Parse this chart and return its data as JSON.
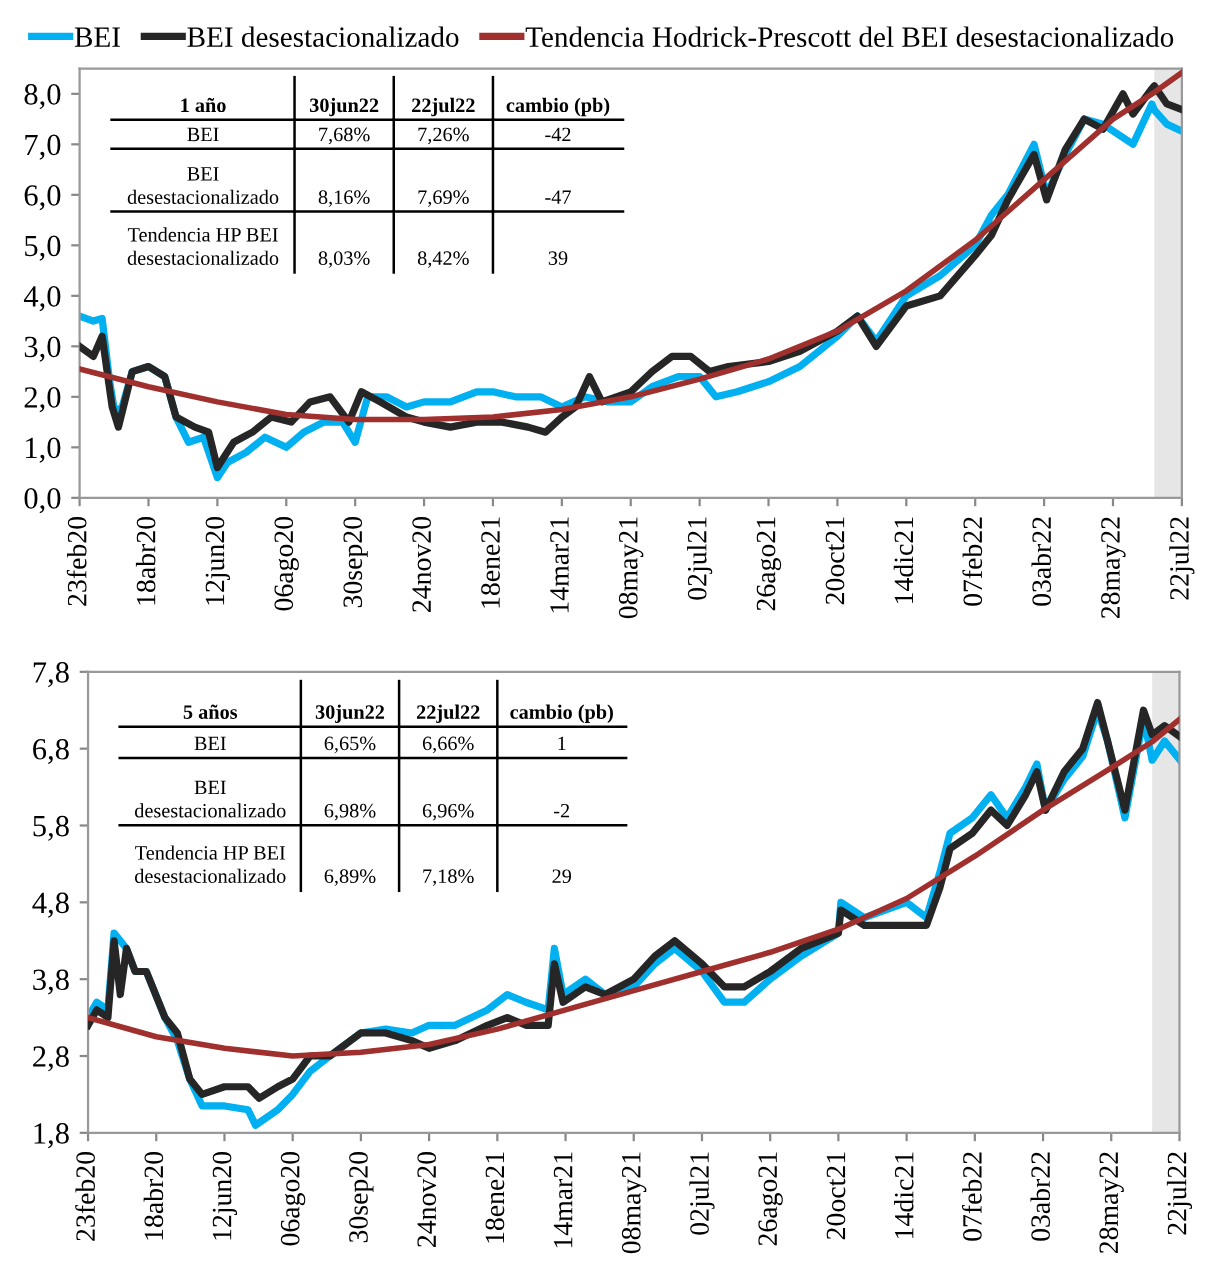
{
  "chart_data": [
    {
      "type": "line",
      "legend": "top",
      "line_style": "solid",
      "xlim": [
        "2020-02-23",
        "2022-07-22"
      ],
      "xticks": [
        {
          "value": "2020-02-23",
          "label": "23feb20"
        },
        {
          "value": "2020-04-18",
          "label": "18abr20"
        },
        {
          "value": "2020-06-12",
          "label": "12jun20"
        },
        {
          "value": "2020-08-06",
          "label": "06ago20"
        },
        {
          "value": "2020-09-30",
          "label": "30sep20"
        },
        {
          "value": "2020-11-24",
          "label": "24nov20"
        },
        {
          "value": "2021-01-18",
          "label": "18ene21"
        },
        {
          "value": "2021-03-14",
          "label": "14mar21"
        },
        {
          "value": "2021-05-08",
          "label": "08may21"
        },
        {
          "value": "2021-07-02",
          "label": "02jul21"
        },
        {
          "value": "2021-08-26",
          "label": "26ago21"
        },
        {
          "value": "2021-10-20",
          "label": "20oct21"
        },
        {
          "value": "2021-12-14",
          "label": "14dic21"
        },
        {
          "value": "2022-02-07",
          "label": "07feb22"
        },
        {
          "value": "2022-04-03",
          "label": "03abr22"
        },
        {
          "value": "2022-05-28",
          "label": "28may22"
        },
        {
          "value": "2022-07-22",
          "label": "22jul22"
        }
      ],
      "ylim": [
        0,
        8.5
      ],
      "yticks": [
        {
          "value": 0,
          "label": "0,0"
        },
        {
          "value": 1,
          "label": "1,0"
        },
        {
          "value": 2,
          "label": "2,0"
        },
        {
          "value": 3,
          "label": "3,0"
        },
        {
          "value": 4,
          "label": "4,0"
        },
        {
          "value": 5,
          "label": "5,0"
        },
        {
          "value": 6,
          "label": "6,0"
        },
        {
          "value": 7,
          "label": "7,0"
        },
        {
          "value": 8,
          "label": "8,0"
        }
      ],
      "bands": [
        {
          "axis": "x",
          "from": "2022-06-30",
          "to": "2022-07-22",
          "color": "#e6e6e6"
        }
      ],
      "annotations": [
        "1 año",
        "30jun22",
        "22jul22",
        "cambio (pb)",
        "BEI",
        "7,68%",
        "7,26%",
        "-42",
        "BEI\ndesestacionalizado",
        "8,16%",
        "7,69%",
        "-47",
        "Tendencia HP BEI\ndesestacionalizado",
        "8,03%",
        "8,42%",
        "39"
      ],
      "series": [
        {
          "name": "BEI",
          "color": "#00b0f0",
          "x": [
            "2020-02-23",
            "2020-03-05",
            "2020-03-12",
            "2020-03-18",
            "2020-03-22",
            "2020-03-28",
            "2020-04-05",
            "2020-04-18",
            "2020-05-01",
            "2020-05-10",
            "2020-05-20",
            "2020-06-01",
            "2020-06-12",
            "2020-06-20",
            "2020-07-05",
            "2020-07-20",
            "2020-08-06",
            "2020-08-20",
            "2020-09-05",
            "2020-09-20",
            "2020-09-30",
            "2020-10-10",
            "2020-10-25",
            "2020-11-10",
            "2020-11-24",
            "2020-12-15",
            "2021-01-05",
            "2021-01-18",
            "2021-02-05",
            "2021-02-25",
            "2021-03-14",
            "2021-04-01",
            "2021-04-20",
            "2021-05-08",
            "2021-05-25",
            "2021-06-15",
            "2021-07-02",
            "2021-07-15",
            "2021-08-01",
            "2021-08-26",
            "2021-09-20",
            "2021-10-20",
            "2021-11-05",
            "2021-11-20",
            "2021-12-14",
            "2022-01-10",
            "2022-02-07",
            "2022-02-20",
            "2022-03-05",
            "2022-03-26",
            "2022-04-05",
            "2022-04-20",
            "2022-05-05",
            "2022-05-20",
            "2022-06-13",
            "2022-06-28",
            "2022-06-30",
            "2022-07-10",
            "2022-07-22"
          ],
          "values": [
            3.6,
            3.5,
            3.55,
            2.3,
            1.7,
            1.8,
            2.5,
            2.6,
            2.4,
            1.6,
            1.1,
            1.2,
            0.4,
            0.7,
            0.9,
            1.2,
            1.0,
            1.3,
            1.5,
            1.5,
            1.1,
            2.0,
            2.0,
            1.8,
            1.9,
            1.9,
            2.1,
            2.1,
            2.0,
            2.0,
            1.8,
            2.0,
            1.9,
            1.9,
            2.2,
            2.4,
            2.4,
            2.0,
            2.1,
            2.3,
            2.6,
            3.2,
            3.6,
            3.1,
            4.0,
            4.4,
            5.0,
            5.6,
            6.0,
            7.0,
            6.0,
            6.8,
            7.5,
            7.4,
            7.0,
            7.8,
            7.68,
            7.4,
            7.26
          ]
        },
        {
          "name": "BEI desestacionalizado",
          "color": "#262626",
          "x": [
            "2020-02-23",
            "2020-03-05",
            "2020-03-12",
            "2020-03-20",
            "2020-03-25",
            "2020-04-05",
            "2020-04-18",
            "2020-05-01",
            "2020-05-10",
            "2020-05-25",
            "2020-06-05",
            "2020-06-12",
            "2020-06-25",
            "2020-07-10",
            "2020-07-25",
            "2020-08-10",
            "2020-08-25",
            "2020-09-10",
            "2020-09-25",
            "2020-10-05",
            "2020-10-20",
            "2020-11-10",
            "2020-11-24",
            "2020-12-15",
            "2021-01-05",
            "2021-01-25",
            "2021-02-15",
            "2021-03-01",
            "2021-03-14",
            "2021-03-25",
            "2021-04-05",
            "2021-04-15",
            "2021-05-08",
            "2021-05-25",
            "2021-06-10",
            "2021-06-25",
            "2021-07-10",
            "2021-07-25",
            "2021-08-26",
            "2021-09-20",
            "2021-10-20",
            "2021-11-05",
            "2021-11-20",
            "2021-12-14",
            "2022-01-10",
            "2022-02-07",
            "2022-02-20",
            "2022-03-05",
            "2022-03-26",
            "2022-04-05",
            "2022-04-20",
            "2022-05-05",
            "2022-05-20",
            "2022-06-05",
            "2022-06-13",
            "2022-06-28",
            "2022-06-30",
            "2022-07-10",
            "2022-07-22"
          ],
          "values": [
            3.0,
            2.8,
            3.2,
            1.8,
            1.4,
            2.5,
            2.6,
            2.4,
            1.6,
            1.4,
            1.3,
            0.6,
            1.1,
            1.3,
            1.6,
            1.5,
            1.9,
            2.0,
            1.5,
            2.1,
            1.9,
            1.6,
            1.5,
            1.4,
            1.5,
            1.5,
            1.4,
            1.3,
            1.6,
            1.8,
            2.4,
            1.9,
            2.1,
            2.5,
            2.8,
            2.8,
            2.5,
            2.6,
            2.7,
            2.9,
            3.3,
            3.6,
            3.0,
            3.8,
            4.0,
            4.8,
            5.2,
            5.9,
            6.8,
            5.9,
            6.9,
            7.5,
            7.3,
            8.0,
            7.6,
            8.1,
            8.16,
            7.8,
            7.69
          ]
        },
        {
          "name": "Tendencia Hodrick-Prescott del BEI desestacionalizado",
          "color": "#a0302d",
          "x": [
            "2020-02-23",
            "2020-04-18",
            "2020-06-12",
            "2020-08-06",
            "2020-09-30",
            "2020-11-24",
            "2021-01-18",
            "2021-03-14",
            "2021-05-08",
            "2021-07-02",
            "2021-08-26",
            "2021-10-20",
            "2021-12-14",
            "2022-02-07",
            "2022-04-03",
            "2022-05-28",
            "2022-06-30",
            "2022-07-22"
          ],
          "values": [
            2.55,
            2.2,
            1.9,
            1.65,
            1.55,
            1.55,
            1.6,
            1.75,
            2.0,
            2.35,
            2.75,
            3.3,
            4.1,
            5.1,
            6.3,
            7.5,
            8.03,
            8.42
          ]
        }
      ]
    },
    {
      "type": "line",
      "line_style": "solid",
      "xlim": [
        "2020-02-23",
        "2022-07-22"
      ],
      "xticks": [
        {
          "value": "2020-02-23",
          "label": "23feb20"
        },
        {
          "value": "2020-04-18",
          "label": "18abr20"
        },
        {
          "value": "2020-06-12",
          "label": "12jun20"
        },
        {
          "value": "2020-08-06",
          "label": "06ago20"
        },
        {
          "value": "2020-09-30",
          "label": "30sep20"
        },
        {
          "value": "2020-11-24",
          "label": "24nov20"
        },
        {
          "value": "2021-01-18",
          "label": "18ene21"
        },
        {
          "value": "2021-03-14",
          "label": "14mar21"
        },
        {
          "value": "2021-05-08",
          "label": "08may21"
        },
        {
          "value": "2021-07-02",
          "label": "02jul21"
        },
        {
          "value": "2021-08-26",
          "label": "26ago21"
        },
        {
          "value": "2021-10-20",
          "label": "20oct21"
        },
        {
          "value": "2021-12-14",
          "label": "14dic21"
        },
        {
          "value": "2022-02-07",
          "label": "07feb22"
        },
        {
          "value": "2022-04-03",
          "label": "03abr22"
        },
        {
          "value": "2022-05-28",
          "label": "28may22"
        },
        {
          "value": "2022-07-22",
          "label": "22jul22"
        }
      ],
      "ylim": [
        1.8,
        7.8
      ],
      "yticks": [
        {
          "value": 1.8,
          "label": "1,8"
        },
        {
          "value": 2.8,
          "label": "2,8"
        },
        {
          "value": 3.8,
          "label": "3,8"
        },
        {
          "value": 4.8,
          "label": "4,8"
        },
        {
          "value": 5.8,
          "label": "5,8"
        },
        {
          "value": 6.8,
          "label": "6,8"
        },
        {
          "value": 7.8,
          "label": "7,8"
        }
      ],
      "bands": [
        {
          "axis": "x",
          "from": "2022-06-30",
          "to": "2022-07-22",
          "color": "#e6e6e6"
        }
      ],
      "annotations": [
        "5 años",
        "30jun22",
        "22jul22",
        "cambio (pb)",
        "BEI",
        "6,65%",
        "6,66%",
        "1",
        "BEI\ndesestacionalizado",
        "6,98%",
        "6,96%",
        "-2",
        "Tendencia HP BEI\ndesestacionalizado",
        "6,89%",
        "7,18%",
        "29"
      ],
      "series": [
        {
          "color": "#00b0f0",
          "x": [
            "2020-02-23",
            "2020-03-01",
            "2020-03-10",
            "2020-03-15",
            "2020-03-25",
            "2020-04-01",
            "2020-04-10",
            "2020-04-25",
            "2020-05-05",
            "2020-05-15",
            "2020-05-25",
            "2020-06-12",
            "2020-07-01",
            "2020-07-07",
            "2020-07-25",
            "2020-08-06",
            "2020-08-20",
            "2020-09-05",
            "2020-09-30",
            "2020-10-20",
            "2020-11-10",
            "2020-11-24",
            "2020-12-15",
            "2021-01-10",
            "2021-01-26",
            "2021-02-10",
            "2021-02-28",
            "2021-03-05",
            "2021-03-12",
            "2021-03-30",
            "2021-04-15",
            "2021-05-08",
            "2021-05-25",
            "2021-06-10",
            "2021-07-02",
            "2021-07-20",
            "2021-08-05",
            "2021-08-26",
            "2021-09-20",
            "2021-10-20",
            "2021-10-22",
            "2021-11-10",
            "2021-12-14",
            "2021-12-30",
            "2022-01-10",
            "2022-01-18",
            "2022-02-05",
            "2022-02-20",
            "2022-03-05",
            "2022-03-20",
            "2022-03-29",
            "2022-04-05",
            "2022-04-20",
            "2022-05-05",
            "2022-05-17",
            "2022-05-25",
            "2022-06-08",
            "2022-06-23",
            "2022-06-30",
            "2022-07-10",
            "2022-07-22"
          ],
          "values": [
            3.3,
            3.5,
            3.4,
            4.4,
            4.2,
            3.9,
            3.9,
            3.3,
            3.0,
            2.5,
            2.15,
            2.15,
            2.1,
            1.9,
            2.1,
            2.3,
            2.6,
            2.8,
            3.1,
            3.15,
            3.1,
            3.2,
            3.2,
            3.4,
            3.6,
            3.5,
            3.4,
            4.2,
            3.6,
            3.8,
            3.6,
            3.7,
            4.0,
            4.2,
            3.9,
            3.5,
            3.5,
            3.8,
            4.1,
            4.4,
            4.8,
            4.6,
            4.8,
            4.6,
            5.2,
            5.7,
            5.9,
            6.2,
            5.9,
            6.3,
            6.6,
            6.0,
            6.4,
            6.7,
            7.3,
            6.9,
            5.9,
            7.2,
            6.65,
            6.9,
            6.66
          ]
        },
        {
          "color": "#262626",
          "x": [
            "2020-02-23",
            "2020-03-01",
            "2020-03-10",
            "2020-03-15",
            "2020-03-20",
            "2020-03-25",
            "2020-04-01",
            "2020-04-10",
            "2020-04-25",
            "2020-05-05",
            "2020-05-15",
            "2020-05-25",
            "2020-06-12",
            "2020-07-01",
            "2020-07-10",
            "2020-07-25",
            "2020-08-06",
            "2020-08-20",
            "2020-09-05",
            "2020-09-30",
            "2020-10-20",
            "2020-11-10",
            "2020-11-24",
            "2020-12-15",
            "2021-01-10",
            "2021-01-26",
            "2021-02-10",
            "2021-02-28",
            "2021-03-05",
            "2021-03-12",
            "2021-03-30",
            "2021-04-15",
            "2021-05-08",
            "2021-05-25",
            "2021-06-10",
            "2021-07-02",
            "2021-07-20",
            "2021-08-05",
            "2021-08-26",
            "2021-09-20",
            "2021-10-20",
            "2021-10-22",
            "2021-11-10",
            "2021-12-14",
            "2021-12-30",
            "2022-01-10",
            "2022-01-18",
            "2022-02-05",
            "2022-02-20",
            "2022-03-05",
            "2022-03-20",
            "2022-03-29",
            "2022-04-05",
            "2022-04-20",
            "2022-05-05",
            "2022-05-17",
            "2022-05-25",
            "2022-06-08",
            "2022-06-23",
            "2022-06-30",
            "2022-07-10",
            "2022-07-22"
          ],
          "values": [
            3.2,
            3.4,
            3.3,
            4.3,
            3.6,
            4.2,
            3.9,
            3.9,
            3.3,
            3.1,
            2.5,
            2.3,
            2.4,
            2.4,
            2.25,
            2.4,
            2.5,
            2.8,
            2.8,
            3.1,
            3.1,
            3.0,
            2.9,
            3.0,
            3.2,
            3.3,
            3.2,
            3.2,
            4.0,
            3.5,
            3.7,
            3.6,
            3.8,
            4.1,
            4.3,
            4.0,
            3.7,
            3.7,
            3.9,
            4.2,
            4.4,
            4.7,
            4.5,
            4.5,
            4.5,
            5.0,
            5.5,
            5.7,
            6.0,
            5.8,
            6.2,
            6.5,
            6.0,
            6.5,
            6.8,
            7.4,
            6.9,
            6.0,
            7.3,
            6.98,
            7.1,
            6.96
          ]
        },
        {
          "color": "#a0302d",
          "x": [
            "2020-02-23",
            "2020-04-18",
            "2020-06-12",
            "2020-08-06",
            "2020-09-30",
            "2020-11-24",
            "2021-01-18",
            "2021-03-14",
            "2021-05-08",
            "2021-07-02",
            "2021-08-26",
            "2021-10-20",
            "2021-12-14",
            "2022-02-07",
            "2022-04-03",
            "2022-05-28",
            "2022-06-30",
            "2022-07-22"
          ],
          "values": [
            3.3,
            3.05,
            2.9,
            2.8,
            2.85,
            2.95,
            3.15,
            3.4,
            3.65,
            3.9,
            4.15,
            4.45,
            4.85,
            5.4,
            6.0,
            6.55,
            6.89,
            7.18
          ]
        }
      ]
    }
  ]
}
